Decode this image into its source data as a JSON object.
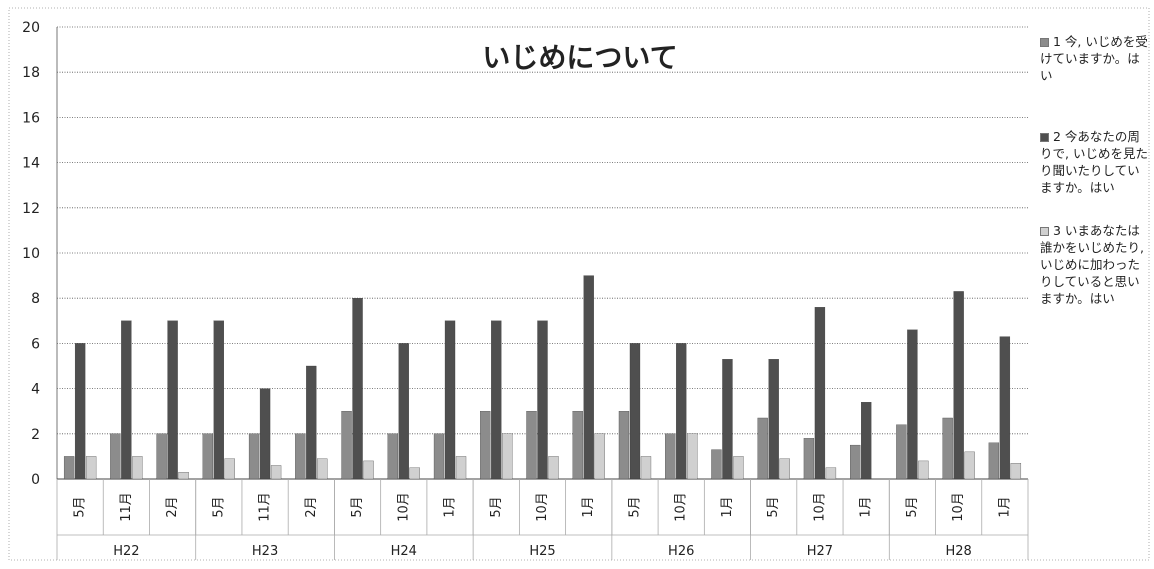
{
  "chart_data": {
    "type": "bar",
    "title": "いじめについて",
    "xlabel": "",
    "ylabel": "",
    "ylim": [
      0,
      20
    ],
    "yticks": [
      "0",
      "2",
      "4",
      "6",
      "8",
      "10",
      "12",
      "14",
      "16",
      "18",
      "20"
    ],
    "grid": true,
    "legend_position": "right",
    "categories": [
      "5月",
      "11月",
      "2月",
      "5月",
      "11月",
      "2月",
      "5月",
      "10月",
      "1月",
      "5月",
      "10月",
      "1月",
      "5月",
      "10月",
      "1月",
      "5月",
      "10月",
      "1月",
      "5月",
      "10月",
      "1月"
    ],
    "groups": [
      {
        "label": "H22",
        "count": 3
      },
      {
        "label": "H23",
        "count": 3
      },
      {
        "label": "H24",
        "count": 3
      },
      {
        "label": "H25",
        "count": 3
      },
      {
        "label": "H26",
        "count": 3
      },
      {
        "label": "H27",
        "count": 3
      },
      {
        "label": "H28",
        "count": 3
      }
    ],
    "series": [
      {
        "name": "1 今, いじめを受けていますか。はい",
        "color": "#8c8c8c",
        "values": [
          1,
          2,
          2,
          2,
          2,
          2,
          3,
          2,
          2,
          3,
          3,
          3,
          3,
          2,
          1.3,
          2.7,
          1.8,
          1.5,
          2.4,
          2.7,
          1.6
        ]
      },
      {
        "name": "2 今あなたの周りで, いじめを見たり聞いたりしていますか。はい",
        "color": "#4f4f4f",
        "values": [
          6,
          7,
          7,
          7,
          4,
          5,
          8,
          6,
          7,
          7,
          7,
          9,
          6,
          6,
          5.3,
          5.3,
          7.6,
          3.4,
          6.6,
          8.3,
          6.3
        ]
      },
      {
        "name": "3 いまあなたは誰かをいじめたり, いじめに加わったりしていると思いますか。はい",
        "color": "#d0d0d0",
        "values": [
          1,
          1,
          0.3,
          0.9,
          0.6,
          0.9,
          0.8,
          0.5,
          1,
          2,
          1,
          2,
          1,
          2,
          1,
          0.9,
          0.5,
          0,
          0.8,
          1.2,
          0.7
        ]
      }
    ]
  }
}
